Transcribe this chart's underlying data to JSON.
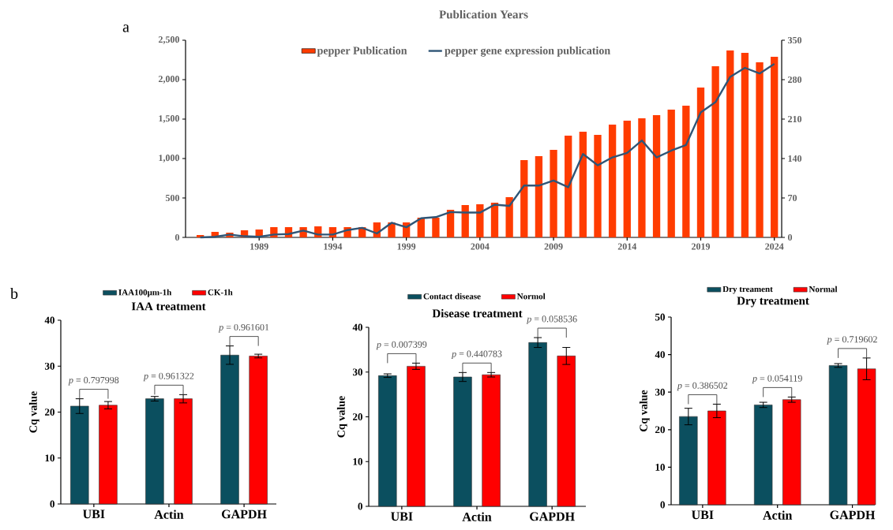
{
  "chart_data": [
    {
      "type": "bar",
      "title": "Publication Years",
      "annotations": [
        "a"
      ],
      "x": [
        1985,
        1986,
        1987,
        1988,
        1989,
        1990,
        1991,
        1992,
        1993,
        1994,
        1995,
        1996,
        1997,
        1998,
        1999,
        2000,
        2001,
        2002,
        2003,
        2004,
        2005,
        2006,
        2007,
        2008,
        2009,
        2010,
        2011,
        2012,
        2013,
        2014,
        2015,
        2016,
        2017,
        2018,
        2019,
        2020,
        2021,
        2022,
        2023,
        2024
      ],
      "series": [
        {
          "name": "pepper Publication",
          "color": "#ff3c00",
          "values": [
            30,
            70,
            60,
            90,
            100,
            130,
            130,
            130,
            140,
            130,
            130,
            130,
            190,
            190,
            190,
            250,
            250,
            350,
            410,
            420,
            440,
            510,
            980,
            1030,
            1110,
            1290,
            1340,
            1300,
            1430,
            1480,
            1510,
            1550,
            1620,
            1670,
            1900,
            2170,
            2370,
            2340,
            2220,
            2290
          ]
        },
        {
          "name": "pepper gene expression publication",
          "type": "line",
          "axis": "y2",
          "color": "#2f5576",
          "values": [
            0,
            1,
            5,
            2,
            1,
            5,
            6,
            12,
            5,
            5,
            13,
            17,
            7,
            26,
            18,
            34,
            36,
            45,
            44,
            44,
            58,
            56,
            92,
            92,
            101,
            89,
            148,
            128,
            142,
            150,
            172,
            142,
            154,
            164,
            222,
            240,
            285,
            301,
            291,
            308
          ]
        }
      ],
      "xlim": [
        1984,
        2024.5
      ],
      "xticks": [
        1989,
        1994,
        1999,
        2004,
        2009,
        2014,
        2019,
        2024
      ],
      "ylim": [
        0,
        2500
      ],
      "yticks": [
        0,
        500,
        {
          "value": 1000,
          "label": "1,000"
        },
        {
          "value": 1500,
          "label": "1,500"
        },
        {
          "value": 2000,
          "label": "2,000"
        },
        {
          "value": 2500,
          "label": "2,500"
        }
      ],
      "y2lim": [
        0,
        350
      ],
      "y2ticks": [
        0,
        70,
        140,
        210,
        280,
        350
      ],
      "legend": "top"
    },
    {
      "type": "bar",
      "title": "IAA treatment",
      "ylabel": "Cq value",
      "categories": [
        "UBI",
        "Actin",
        "GAPDH"
      ],
      "annotations": [
        "b",
        "*p* = 0.797998",
        "*p* = 0.961322",
        "*p* = 0.961601"
      ],
      "series": [
        {
          "name": "IAA100μm-1h",
          "color": "#0b4f5f",
          "values": [
            21.3,
            22.9,
            32.4
          ],
          "errors": [
            1.6,
            0.5,
            2.0
          ]
        },
        {
          "name": "CK-1h",
          "color": "#ff0000",
          "values": [
            21.5,
            22.9,
            32.2
          ],
          "errors": [
            0.8,
            0.9,
            0.4
          ]
        }
      ],
      "ylim": [
        0,
        40
      ],
      "yticks": [
        0,
        10,
        20,
        30,
        40
      ],
      "legend": "top"
    },
    {
      "type": "bar",
      "title": "Disease treatment",
      "ylabel": "Cq value",
      "categories": [
        "UBI",
        "Actin",
        "GAPDH"
      ],
      "annotations": [
        "*p* = 0.007399",
        "*p* = 0.440783",
        "*p* = 0.058536"
      ],
      "series": [
        {
          "name": "Contact disease",
          "color": "#0b4f5f",
          "values": [
            29.2,
            28.9,
            36.6
          ],
          "errors": [
            0.4,
            1.0,
            1.1
          ]
        },
        {
          "name": "Normol",
          "color": "#ff0000",
          "values": [
            31.3,
            29.4,
            33.6
          ],
          "errors": [
            0.7,
            0.5,
            1.9
          ]
        }
      ],
      "ylim": [
        0,
        40
      ],
      "yticks": [
        0,
        10,
        20,
        30,
        40
      ],
      "legend": "top"
    },
    {
      "type": "bar",
      "title": "Dry treatment",
      "ylabel": "Cq value",
      "categories": [
        "UBI",
        "Actin",
        "GAPDH"
      ],
      "annotations": [
        "*p* = 0.386502",
        "*p* = 0.054119",
        "*p* = 0.719602"
      ],
      "series": [
        {
          "name": "Dry treament",
          "color": "#0b4f5f",
          "values": [
            23.5,
            26.6,
            37.1
          ],
          "errors": [
            2.2,
            0.7,
            0.5
          ]
        },
        {
          "name": "Normal",
          "color": "#ff0000",
          "values": [
            25.0,
            28.0,
            36.2
          ],
          "errors": [
            1.8,
            0.7,
            2.9
          ]
        }
      ],
      "ylim": [
        0,
        50
      ],
      "yticks": [
        0,
        10,
        20,
        30,
        40,
        50
      ],
      "legend": "top"
    }
  ]
}
